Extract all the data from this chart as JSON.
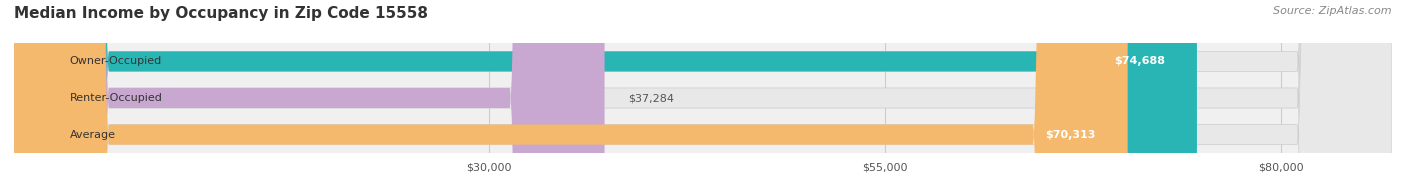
{
  "title": "Median Income by Occupancy in Zip Code 15558",
  "source": "Source: ZipAtlas.com",
  "categories": [
    "Owner-Occupied",
    "Renter-Occupied",
    "Average"
  ],
  "values": [
    74688,
    37284,
    70313
  ],
  "bar_colors": [
    "#2ab5b5",
    "#c8a8d0",
    "#f5b96e"
  ],
  "bar_labels": [
    "$74,688",
    "$37,284",
    "$70,313"
  ],
  "label_inside": [
    true,
    false,
    true
  ],
  "x_ticks": [
    30000,
    55000,
    80000
  ],
  "x_tick_labels": [
    "$30,000",
    "$55,000",
    "$80,000"
  ],
  "xlim": [
    0,
    87000
  ],
  "bar_background_color": "#e8e8e8",
  "title_fontsize": 11,
  "source_fontsize": 8,
  "bar_height": 0.55,
  "bar_label_fontsize": 8,
  "category_fontsize": 8
}
